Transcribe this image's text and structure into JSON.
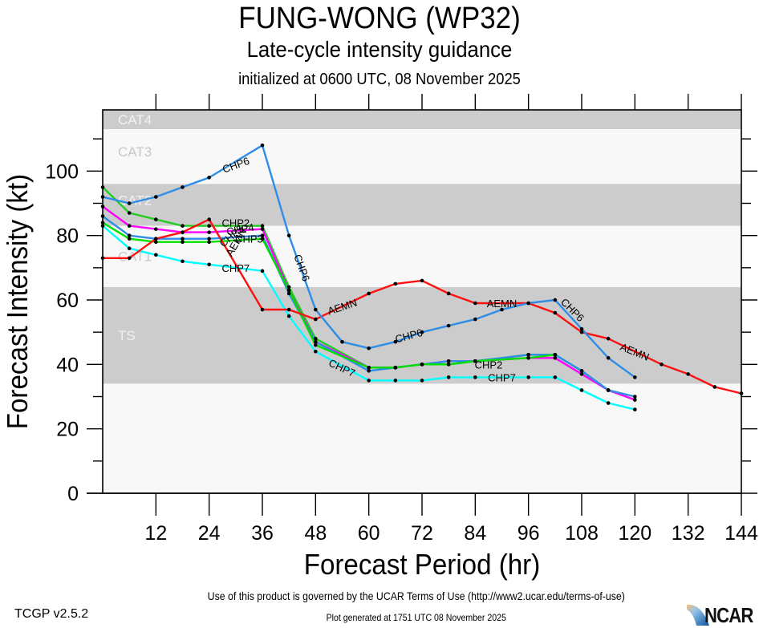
{
  "header": {
    "title": "FUNG-WONG (WP32)",
    "subtitle": "Late-cycle intensity guidance",
    "initialized": "initialized at 0600 UTC, 08 November 2025"
  },
  "footer": {
    "terms": "Use of this product is governed by the UCAR Terms of Use (http://www2.ucar.edu/terms-of-use)",
    "version": "TCGP v2.5.2",
    "generated": "Plot generated at 1751 UTC   08 November 2025",
    "logo_text": "NCAR"
  },
  "chart_data": {
    "type": "line",
    "title": "FUNG-WONG (WP32)",
    "subtitle": "Late-cycle intensity guidance",
    "xlabel": "Forecast Period (hr)",
    "ylabel": "Forecast Intensity (kt)",
    "xlim": [
      0,
      144
    ],
    "ylim": [
      0,
      119
    ],
    "xticks": [
      12,
      24,
      36,
      48,
      60,
      72,
      84,
      96,
      108,
      120,
      132,
      144
    ],
    "yticks": [
      0,
      20,
      40,
      60,
      80,
      100
    ],
    "grid": false,
    "bands": [
      {
        "label": "CAT4",
        "from": 113,
        "to": 119,
        "shade": "#cccccc",
        "label_color": "#f2f2f2"
      },
      {
        "label": "CAT3",
        "from": 96,
        "to": 113,
        "shade": "#f8f8f8",
        "label_color": "#c8c8c8"
      },
      {
        "label": "CAT2",
        "from": 83,
        "to": 96,
        "shade": "#cccccc",
        "label_color": "#f2f2f2"
      },
      {
        "label": "CAT1",
        "from": 64,
        "to": 83,
        "shade": "#f8f8f8",
        "label_color": "#c8c8c8"
      },
      {
        "label": "TS",
        "from": 34,
        "to": 64,
        "shade": "#cccccc",
        "label_color": "#f2f2f2"
      },
      {
        "label": "",
        "from": 0,
        "to": 34,
        "shade": "#f8f8f8",
        "label_color": "#c8c8c8"
      }
    ],
    "series": [
      {
        "name": "CHP2",
        "color": "#22cc22",
        "x": [
          0,
          6,
          12,
          18,
          24,
          36,
          42,
          48,
          60,
          66,
          72,
          78,
          84,
          96,
          102,
          108,
          114,
          120
        ],
        "y": [
          95,
          87,
          85,
          83,
          83,
          83,
          64,
          48,
          39,
          39,
          40,
          40,
          41,
          43,
          43,
          38,
          32,
          29
        ],
        "labels": [
          {
            "text": "CHP2",
            "x": 30,
            "y": 84,
            "angle": 0
          },
          {
            "text": "CHP2",
            "x": 87,
            "y": 40,
            "angle": 0
          }
        ]
      },
      {
        "name": "CHP4",
        "color": "#ff00ff",
        "x": [
          0,
          6,
          12,
          18,
          24,
          36,
          42,
          48,
          60,
          66,
          72,
          78,
          84,
          96,
          102,
          108,
          114,
          120
        ],
        "y": [
          89,
          83,
          82,
          81,
          81,
          82,
          63,
          47,
          39,
          39,
          40,
          41,
          41,
          42,
          42,
          37,
          32,
          29
        ],
        "labels": [
          {
            "text": "CHP4",
            "x": 31,
            "y": 82,
            "angle": -10
          }
        ]
      },
      {
        "name": "CHP3",
        "color": "#2e8de6",
        "x": [
          0,
          6,
          12,
          18,
          24,
          36,
          42,
          48,
          60,
          66,
          72,
          78,
          84,
          96,
          102,
          108,
          114,
          120
        ],
        "y": [
          86,
          80,
          79,
          79,
          79,
          80,
          62,
          47,
          38,
          39,
          40,
          41,
          41,
          43,
          43,
          38,
          32,
          30
        ],
        "labels": [
          {
            "text": "CHP3",
            "x": 33,
            "y": 79,
            "angle": 0
          }
        ]
      },
      {
        "name": "CHP5",
        "color": "#00e000",
        "x": [
          0,
          6,
          12,
          18,
          24,
          36,
          42,
          48,
          60,
          66,
          72,
          78,
          84,
          96,
          102
        ],
        "y": [
          84,
          79,
          78,
          78,
          78,
          79,
          63,
          46,
          39,
          39,
          40,
          40,
          41,
          42,
          43
        ],
        "labels": [
          {
            "text": "CHP5",
            "x": 29,
            "y": 80,
            "angle": -40
          }
        ]
      },
      {
        "name": "CHP7",
        "color": "#00ffff",
        "x": [
          0,
          6,
          12,
          18,
          24,
          36,
          42,
          48,
          60,
          66,
          72,
          78,
          84,
          96,
          102,
          108,
          114,
          120
        ],
        "y": [
          83,
          76,
          74,
          72,
          71,
          69,
          55,
          44,
          35,
          35,
          35,
          36,
          36,
          36,
          36,
          32,
          28,
          26
        ],
        "labels": [
          {
            "text": "CHP7",
            "x": 30,
            "y": 70,
            "angle": 0
          },
          {
            "text": "CHP7",
            "x": 54,
            "y": 39,
            "angle": 25
          },
          {
            "text": "CHP7",
            "x": 90,
            "y": 36,
            "angle": 0
          }
        ]
      },
      {
        "name": "AEMN",
        "color": "#ff1010",
        "x": [
          0,
          6,
          12,
          18,
          24,
          36,
          42,
          48,
          60,
          66,
          72,
          78,
          84,
          96,
          102,
          108,
          114,
          126,
          132,
          138,
          144
        ],
        "y": [
          73,
          73,
          79,
          81,
          85,
          57,
          57,
          54,
          62,
          65,
          66,
          62,
          59,
          59,
          56,
          50,
          48,
          40,
          37,
          33,
          31
        ],
        "labels": [
          {
            "text": "AEMN",
            "x": 30,
            "y": 78,
            "angle": -60
          },
          {
            "text": "AEMN",
            "x": 54,
            "y": 58,
            "angle": -18
          },
          {
            "text": "AEMN",
            "x": 90,
            "y": 59,
            "angle": 0
          },
          {
            "text": "AEMN",
            "x": 120,
            "y": 44,
            "angle": 22
          }
        ]
      },
      {
        "name": "CHP6",
        "color": "#2e8de6",
        "x": [
          0,
          6,
          12,
          18,
          24,
          36,
          42,
          48,
          54,
          60,
          66,
          72,
          78,
          84,
          90,
          96,
          102,
          108,
          114,
          120
        ],
        "y": [
          92,
          90,
          92,
          95,
          98,
          108,
          80,
          57,
          47,
          45,
          47,
          50,
          52,
          54,
          57,
          59,
          60,
          51,
          42,
          36
        ],
        "labels": [
          {
            "text": "CHP6",
            "x": 30,
            "y": 102,
            "angle": -20
          },
          {
            "text": "CHP6",
            "x": 45,
            "y": 70,
            "angle": 70
          },
          {
            "text": "CHP6",
            "x": 69,
            "y": 49,
            "angle": -15
          },
          {
            "text": "CHP6",
            "x": 106,
            "y": 57,
            "angle": 45
          }
        ]
      }
    ]
  }
}
